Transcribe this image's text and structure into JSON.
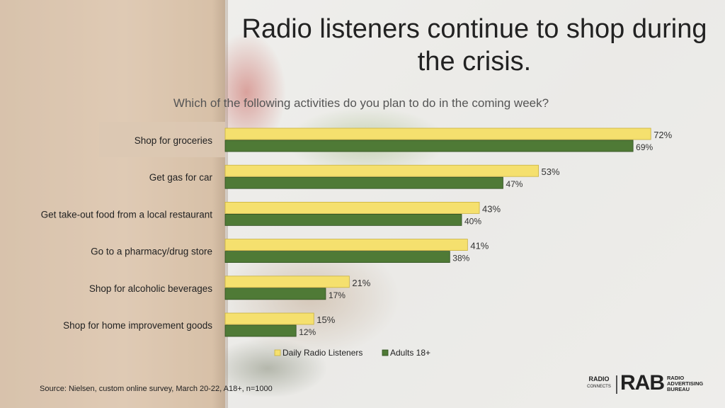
{
  "title": "Radio listeners continue to shop during the crisis.",
  "subtitle": "Which of the following activities do you plan to do in the coming week?",
  "source": "Source: Nielsen, custom online survey,  March 20-22, A18+, n=1000",
  "logos": {
    "radio_connects_top": "RADIO",
    "radio_connects_bottom": "CONNECTS",
    "rab": "RAB",
    "rab_text": "RADIO ADVERTISING BUREAU"
  },
  "chart_data": {
    "type": "bar",
    "orientation": "horizontal",
    "title": "Which of the following activities do you plan to do in the coming week?",
    "categories": [
      "Shop for groceries",
      "Get gas for car",
      "Get take-out food from a local restaurant",
      "Go to a pharmacy/drug store",
      "Shop for alcoholic beverages",
      "Shop for home improvement goods"
    ],
    "series": [
      {
        "name": "Daily Radio Listeners",
        "values": [
          72,
          53,
          43,
          41,
          21,
          15
        ],
        "color": "#f5e06e"
      },
      {
        "name": "Adults 18+",
        "values": [
          69,
          47,
          40,
          38,
          17,
          12
        ],
        "color": "#4f7a36"
      }
    ],
    "value_suffix": "%",
    "xlim": [
      0,
      80
    ],
    "grid": false,
    "legend": "bottom"
  }
}
